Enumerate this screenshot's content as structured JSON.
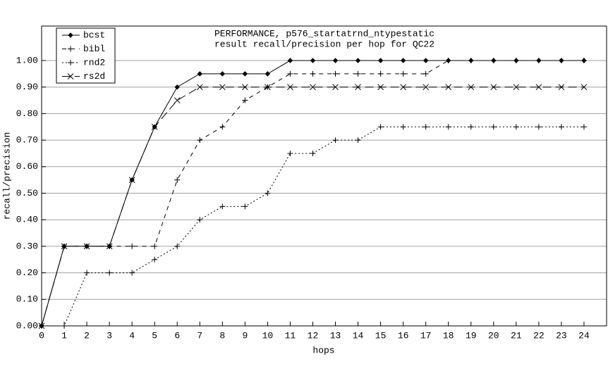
{
  "chart_data": {
    "type": "line",
    "title": "PERFORMANCE, p576_startatrnd_ntypestatic",
    "subtitle": "result recall/precision per hop for QC22",
    "x_label": "hops",
    "y_label": "recall/precision",
    "x": [
      0,
      1,
      2,
      3,
      4,
      5,
      6,
      7,
      8,
      9,
      10,
      11,
      12,
      13,
      14,
      15,
      16,
      17,
      18,
      19,
      20,
      21,
      22,
      23,
      24
    ],
    "series": [
      {
        "name": "bcst",
        "color": "#000000",
        "dash": "solid",
        "marker": "diamond",
        "values": [
          0,
          0.3,
          0.3,
          0.3,
          0.55,
          0.75,
          0.9,
          0.95,
          0.95,
          0.95,
          0.95,
          1,
          1,
          1,
          1,
          1,
          1,
          1,
          1,
          1,
          1,
          1,
          1,
          1,
          1
        ]
      },
      {
        "name": "bibl",
        "color": "#000000",
        "dash": "dashed",
        "marker": "plus",
        "values": [
          0,
          0.3,
          0.3,
          0.3,
          0.3,
          0.3,
          0.55,
          0.7,
          0.75,
          0.85,
          0.9,
          0.95,
          0.95,
          0.95,
          0.95,
          0.95,
          0.95,
          0.95,
          1,
          1,
          1,
          1,
          1,
          1,
          1
        ]
      },
      {
        "name": "rnd2",
        "color": "#000000",
        "dash": "dotted",
        "marker": "plus",
        "values": [
          0,
          0,
          0.2,
          0.2,
          0.2,
          0.25,
          0.3,
          0.4,
          0.45,
          0.45,
          0.5,
          0.65,
          0.65,
          0.7,
          0.7,
          0.75,
          0.75,
          0.75,
          0.75,
          0.75,
          0.75,
          0.75,
          0.75,
          0.75,
          0.75
        ]
      },
      {
        "name": "rs2d",
        "color": "#000000",
        "dash": "longdash",
        "marker": "cross",
        "values": [
          0,
          0.3,
          0.3,
          0.3,
          0.55,
          0.75,
          0.85,
          0.9,
          0.9,
          0.9,
          0.9,
          0.9,
          0.9,
          0.9,
          0.9,
          0.9,
          0.9,
          0.9,
          0.9,
          0.9,
          0.9,
          0.9,
          0.9,
          0.9,
          0.9
        ]
      }
    ],
    "xlim": [
      0,
      25
    ],
    "ylim": [
      0,
      1.13
    ],
    "xticks": [
      0,
      1,
      2,
      3,
      4,
      5,
      6,
      7,
      8,
      9,
      10,
      11,
      12,
      13,
      14,
      15,
      16,
      17,
      18,
      19,
      20,
      21,
      22,
      23,
      24
    ],
    "yticks": [
      {
        "value": 0,
        "label": "0.00"
      },
      {
        "value": 0.1,
        "label": "0.10"
      },
      {
        "value": 0.2,
        "label": "0.20"
      },
      {
        "value": 0.3,
        "label": "0.30"
      },
      {
        "value": 0.4,
        "label": "0.40"
      },
      {
        "value": 0.5,
        "label": "0.50"
      },
      {
        "value": 0.6,
        "label": "0.60"
      },
      {
        "value": 0.7,
        "label": "0.70"
      },
      {
        "value": 0.8,
        "label": "0.80"
      },
      {
        "value": 0.9,
        "label": "0.90"
      },
      {
        "value": 1,
        "label": "1.00"
      }
    ],
    "grid": true,
    "legend": "top-left"
  }
}
